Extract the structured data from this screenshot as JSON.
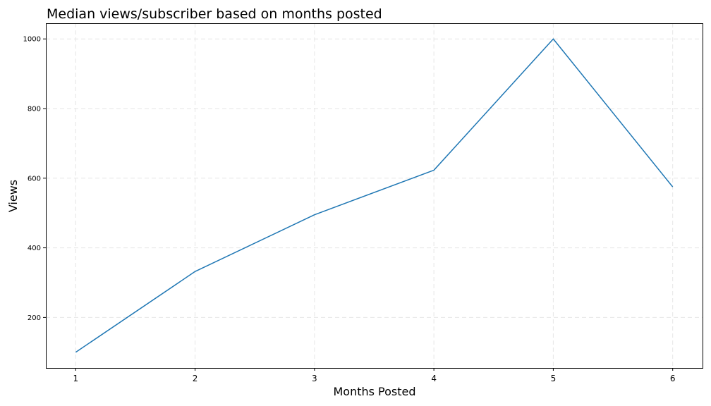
{
  "chart_data": {
    "type": "line",
    "title": "Median views/subscriber based on months posted",
    "xlabel": "Months Posted",
    "ylabel": "Views",
    "x": [
      1,
      2,
      3,
      4,
      5,
      6
    ],
    "x_tick_labels": [
      "1",
      "2",
      "3",
      "4",
      "5",
      "6"
    ],
    "xlim": [
      0.75,
      6.25
    ],
    "y_ticks": [
      200,
      400,
      600,
      800,
      1000
    ],
    "y_tick_labels": [
      "200",
      "400",
      "600",
      "800",
      "1000"
    ],
    "ylim": [
      55,
      1045
    ],
    "grid": true,
    "series": [
      {
        "values": [
          100,
          332,
          495,
          623,
          1000,
          575
        ],
        "color": "#1f77b4"
      }
    ]
  }
}
